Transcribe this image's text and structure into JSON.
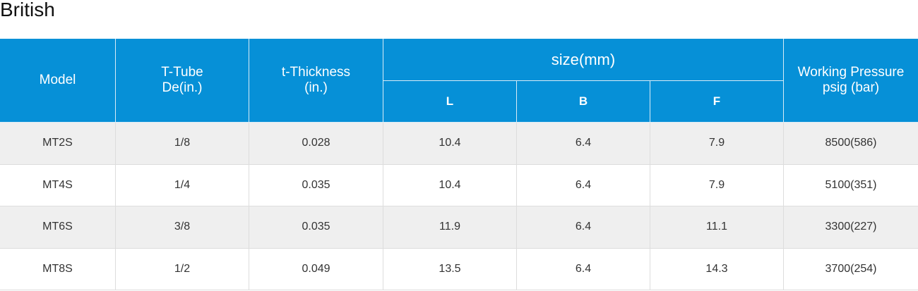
{
  "title": "British",
  "table": {
    "header": {
      "columns": [
        "Model",
        "T-Tube\nDe(in.)",
        "t-Thickness\n(in.)",
        "Working Pressure\npsig (bar)"
      ],
      "group": "size(mm)",
      "subcolumns": [
        "L",
        "B",
        "F"
      ]
    },
    "rows": [
      [
        "MT2S",
        "1/8",
        "0.028",
        "10.4",
        "6.4",
        "7.9",
        "8500(586)"
      ],
      [
        "MT4S",
        "1/4",
        "0.035",
        "10.4",
        "6.4",
        "7.9",
        "5100(351)"
      ],
      [
        "MT6S",
        "3/8",
        "0.035",
        "11.9",
        "6.4",
        "11.1",
        "3300(227)"
      ],
      [
        "MT8S",
        "1/2",
        "0.049",
        "13.5",
        "6.4",
        "14.3",
        "3700(254)"
      ]
    ]
  }
}
